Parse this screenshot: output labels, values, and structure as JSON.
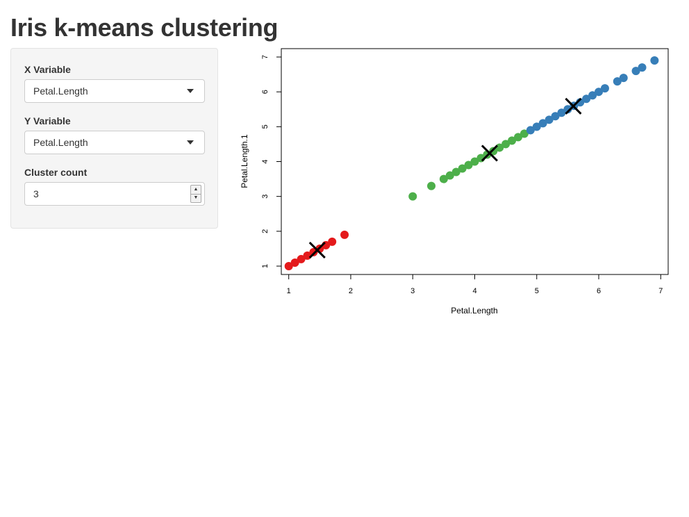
{
  "page": {
    "title": "Iris k-means clustering"
  },
  "sidebar": {
    "x_variable": {
      "label": "X Variable",
      "selected": "Petal.Length"
    },
    "y_variable": {
      "label": "Y Variable",
      "selected": "Petal.Length"
    },
    "cluster_count": {
      "label": "Cluster count",
      "value": "3"
    }
  },
  "chart_data": {
    "type": "scatter",
    "xlabel": "Petal.Length",
    "ylabel": "Petal.Length.1",
    "xlim": [
      0.88,
      7.12
    ],
    "ylim": [
      0.76,
      7.24
    ],
    "xticks": [
      1,
      2,
      3,
      4,
      5,
      6,
      7
    ],
    "yticks": [
      1,
      2,
      3,
      4,
      5,
      6,
      7
    ],
    "grid": false,
    "series": [
      {
        "color": "#e41a1c",
        "values": [
          1.0,
          1.1,
          1.2,
          1.3,
          1.4,
          1.5,
          1.6,
          1.7,
          1.9
        ]
      },
      {
        "color": "#4daf4a",
        "values": [
          3.0,
          3.3,
          3.5,
          3.6,
          3.7,
          3.8,
          3.9,
          4.0,
          4.1,
          4.2,
          4.3,
          4.4,
          4.5,
          4.6,
          4.7,
          4.8
        ]
      },
      {
        "color": "#377eb8",
        "values": [
          4.9,
          5.0,
          5.1,
          5.2,
          5.3,
          5.4,
          5.5,
          5.6,
          5.7,
          5.8,
          5.9,
          6.0,
          6.1,
          6.3,
          6.4,
          6.6,
          6.7,
          6.9
        ]
      }
    ],
    "centers": [
      {
        "x": 1.46,
        "y": 1.46
      },
      {
        "x": 4.24,
        "y": 4.24
      },
      {
        "x": 5.59,
        "y": 5.59
      }
    ]
  }
}
